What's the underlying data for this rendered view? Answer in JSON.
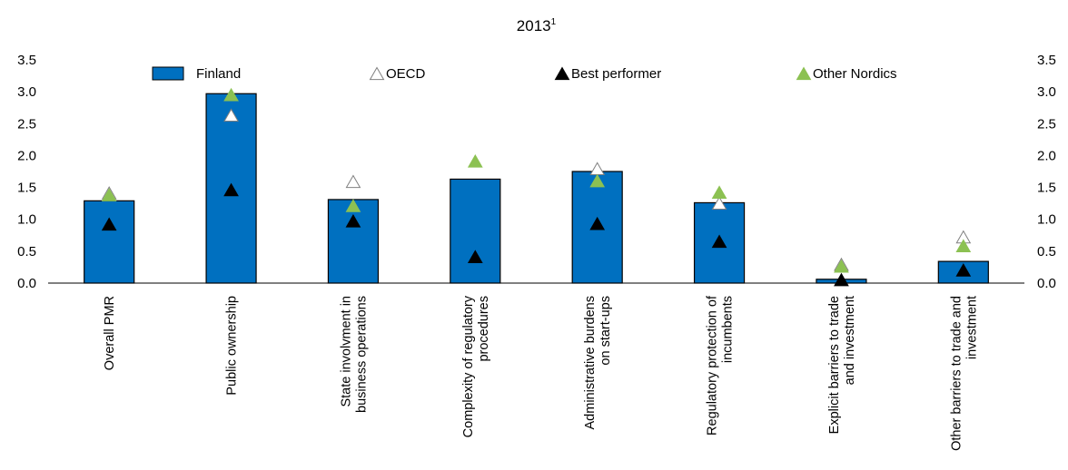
{
  "chart_data": {
    "type": "bar",
    "title": "2013",
    "title_superscript": "1",
    "categories": [
      [
        "Overall PMR"
      ],
      [
        "Public ownership"
      ],
      [
        "State involvment in",
        "business operations"
      ],
      [
        "Complexity of regulatory",
        "procedures"
      ],
      [
        "Administrative burdens",
        "on start-ups"
      ],
      [
        "Regulatory protection of",
        "incumbents"
      ],
      [
        "Explicit barriers to trade",
        "and investment"
      ],
      [
        "Other barriers to trade and",
        "investment"
      ]
    ],
    "series": [
      {
        "name": "Finland",
        "kind": "bar",
        "color": "#0070c0",
        "values": [
          1.29,
          2.97,
          1.31,
          1.63,
          1.75,
          1.26,
          0.06,
          0.34
        ]
      },
      {
        "name": "OECD",
        "kind": "marker-hollow-triangle",
        "color": "#ffffff",
        "values": [
          1.4,
          2.62,
          1.58,
          null,
          1.78,
          1.24,
          0.28,
          0.71
        ]
      },
      {
        "name": "Best performer",
        "kind": "marker-triangle",
        "color": "#000000",
        "values": [
          0.91,
          1.45,
          0.96,
          0.4,
          0.92,
          0.64,
          0.04,
          0.19
        ]
      },
      {
        "name": "Other Nordics",
        "kind": "marker-triangle",
        "color": "#8cc152",
        "values": [
          1.37,
          2.94,
          1.2,
          1.9,
          1.59,
          1.41,
          0.25,
          0.57
        ]
      }
    ],
    "y_ticks": [
      "0.0",
      "0.5",
      "1.0",
      "1.5",
      "2.0",
      "2.5",
      "3.0",
      "3.5"
    ],
    "ylim": [
      0,
      3.5
    ],
    "legend_position": "top",
    "grid": false
  }
}
